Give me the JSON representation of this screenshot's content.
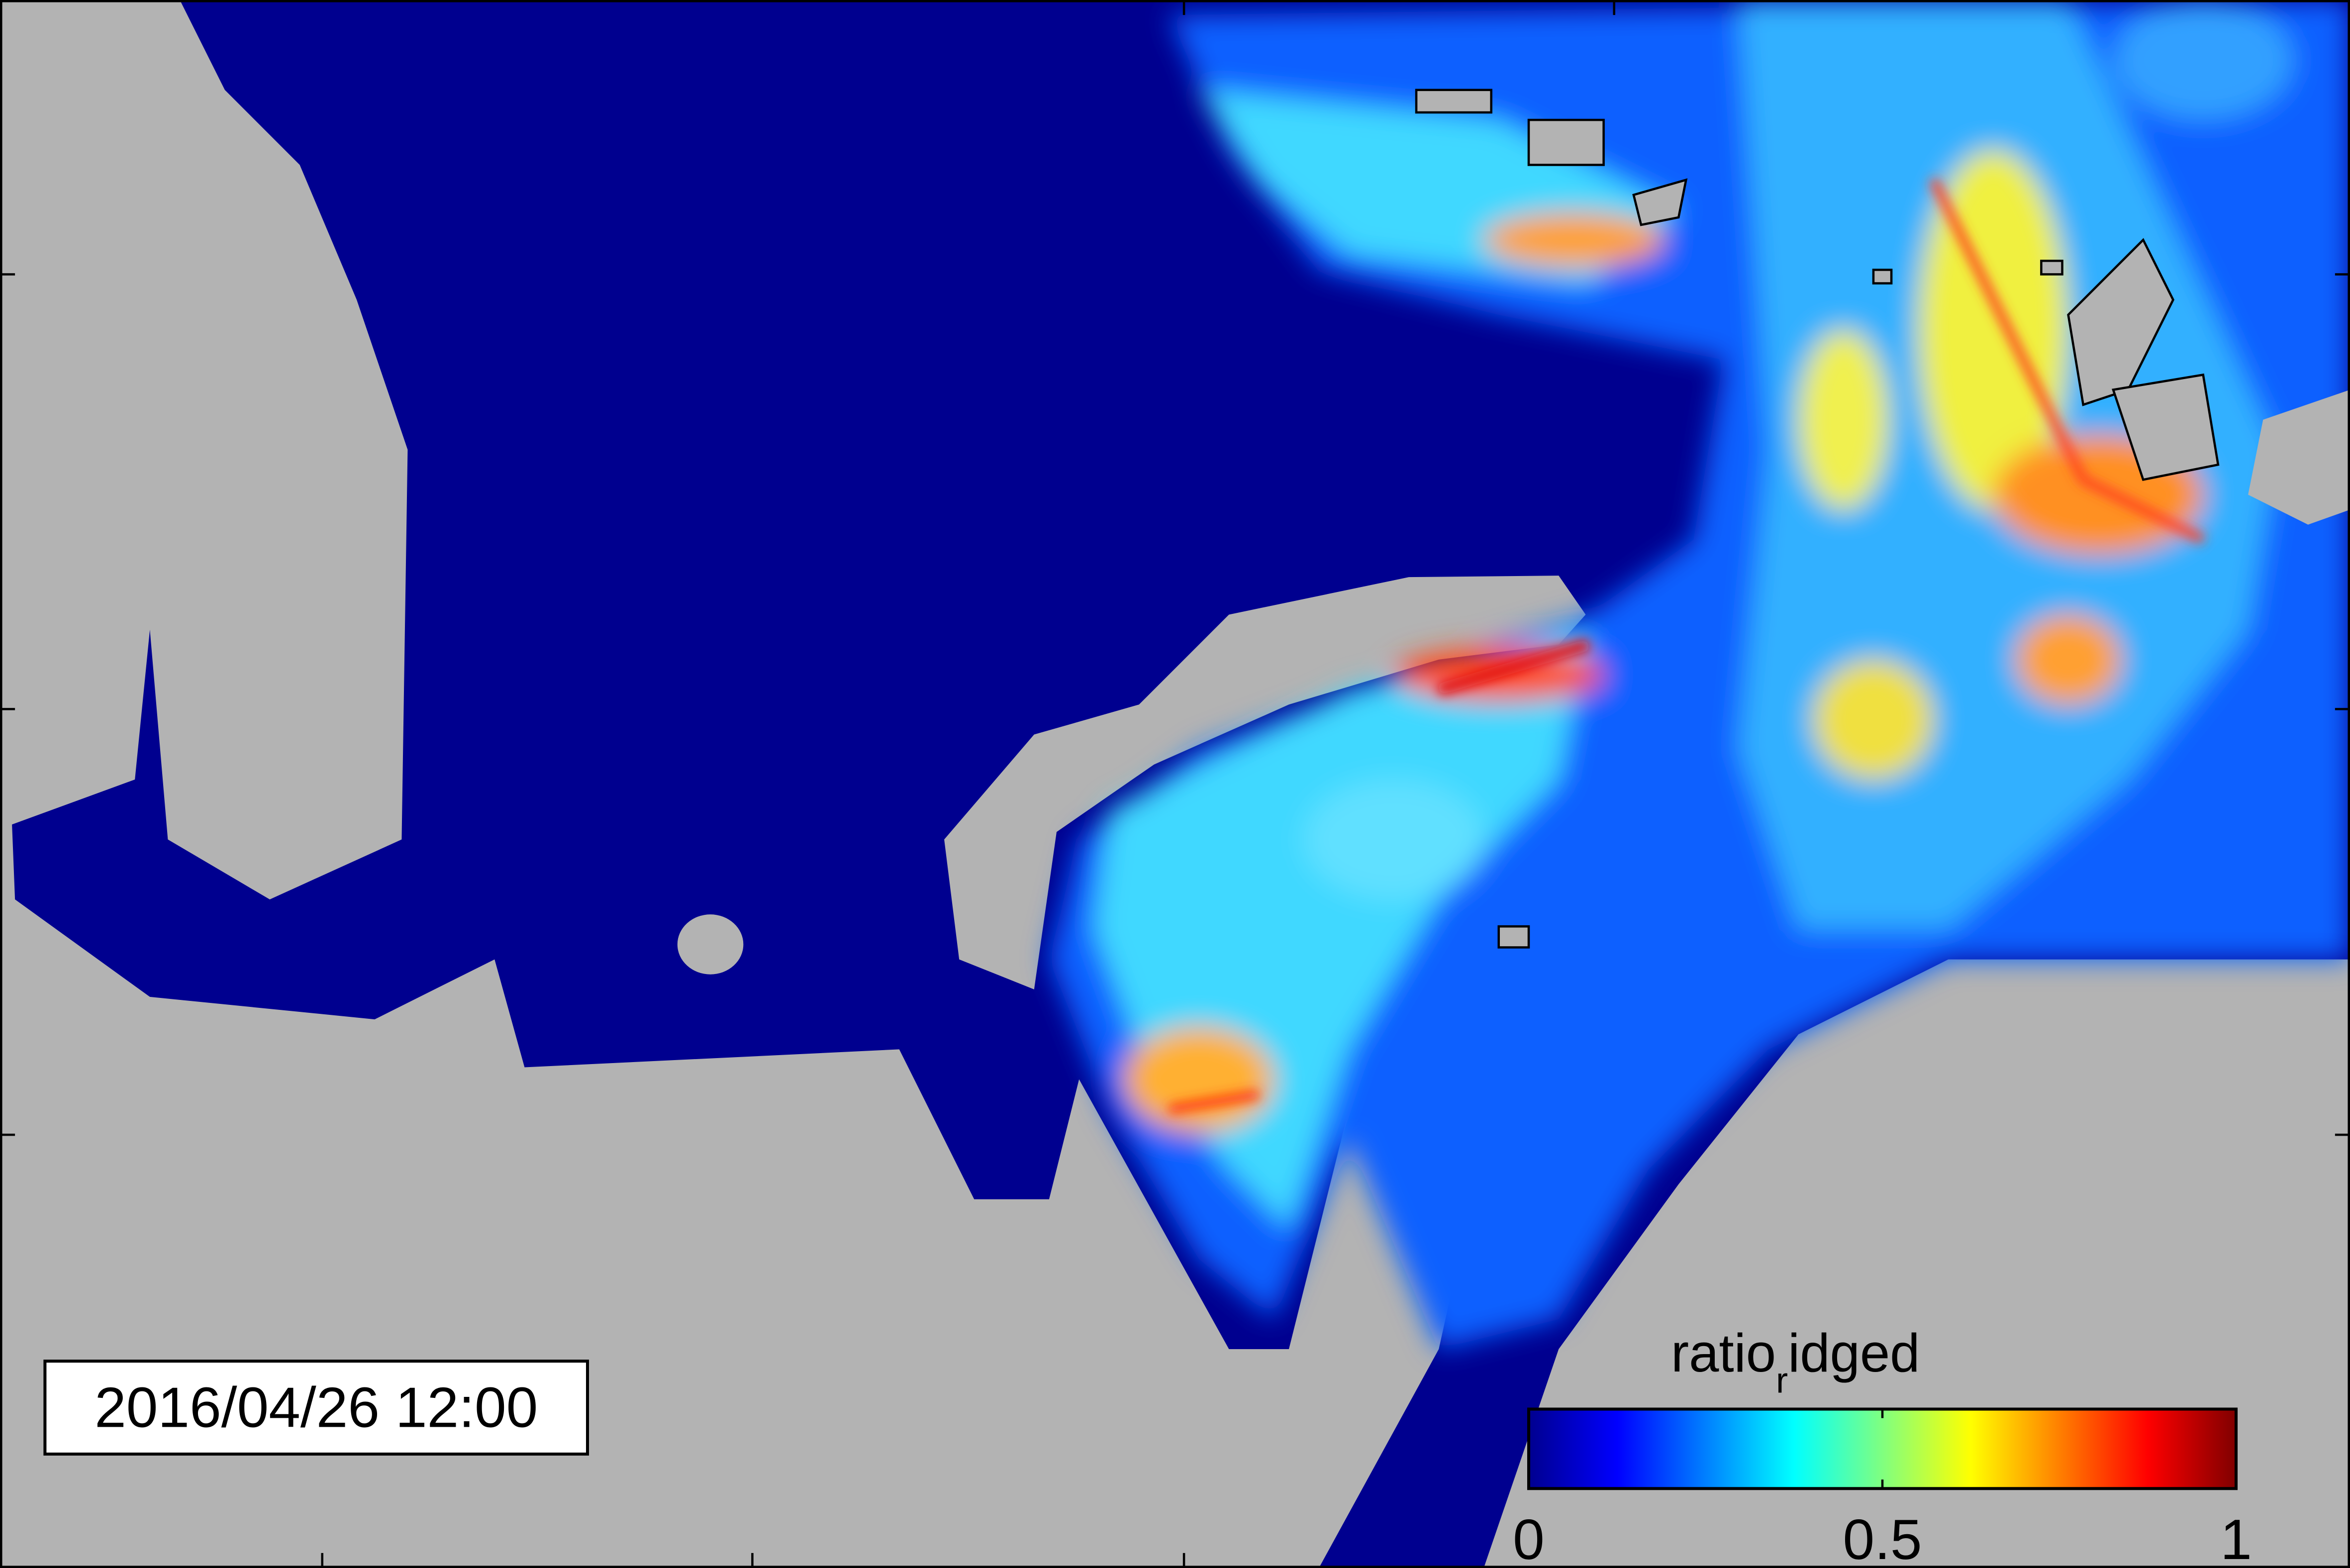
{
  "map": {
    "timestamp": "2016/04/26 12:00",
    "colorbar": {
      "label_parts": [
        "ratio",
        "r",
        "idged"
      ],
      "lim": [
        0,
        1
      ],
      "ticks": [
        0,
        0.5,
        1
      ]
    }
  }
}
